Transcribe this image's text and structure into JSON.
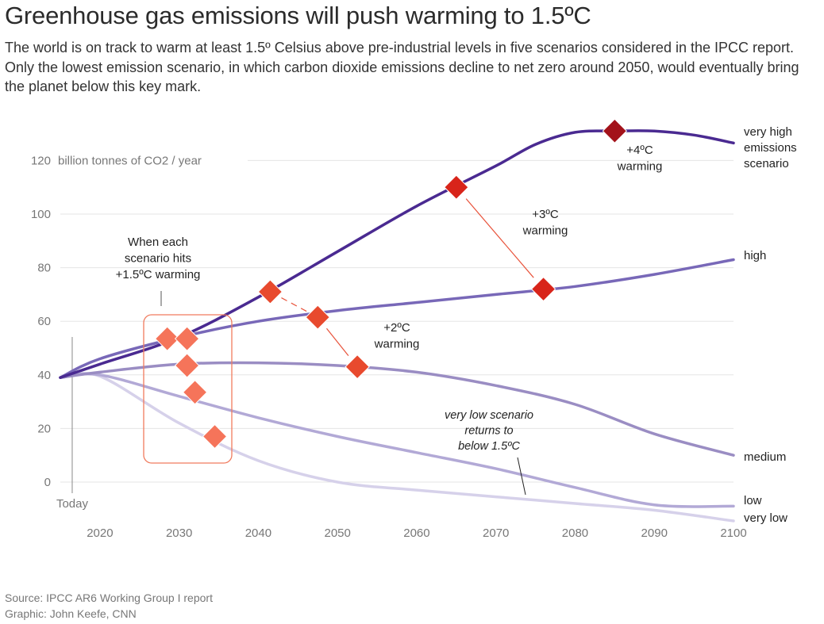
{
  "title": "Greenhouse gas emissions will push warming to 1.5ºC",
  "subtitle": "The world is on track to warm at least 1.5º Celsius above pre-industrial levels in five scenarios considered in the IPCC report. Only the lowest emission scenario, in which carbon dioxide emissions decline to net zero around 2050, would eventually bring the planet below this key mark.",
  "footer": {
    "source": "Source: IPCC AR6 Working Group I report",
    "credit": "Graphic: John Keefe, CNN"
  },
  "colors": {
    "very_high": "#4a2a91",
    "high": "#7868b8",
    "medium": "#9a8dc3",
    "low": "#b2a9d6",
    "very_low": "#d6d1ea",
    "marker_15": "#f5745a",
    "marker_2": "#e84a2e",
    "marker_3": "#d8241a",
    "marker_4": "#a3121a",
    "connector": "#e8523a",
    "box": "#f07b5e",
    "grid": "#e5e5e5",
    "tick": "#777777"
  },
  "chart_data": {
    "type": "line",
    "xlim": [
      2015,
      2100
    ],
    "ylim": [
      -15,
      130
    ],
    "x_ticks": [
      2020,
      2030,
      2040,
      2050,
      2060,
      2070,
      2080,
      2090,
      2100
    ],
    "y_ticks": [
      0,
      20,
      40,
      60,
      80,
      100,
      120
    ],
    "ylabel": "billion tonnes of CO2 / year",
    "today": {
      "x": 2016.5,
      "label": "Today"
    },
    "series": [
      {
        "key": "very_high",
        "name": "very high emissions scenario",
        "label_lines": [
          "very high",
          "emissions",
          "scenario"
        ],
        "points": [
          [
            2015,
            39
          ],
          [
            2020,
            44
          ],
          [
            2030,
            54
          ],
          [
            2040,
            69
          ],
          [
            2050,
            86
          ],
          [
            2060,
            103
          ],
          [
            2070,
            118
          ],
          [
            2075,
            126
          ],
          [
            2080,
            130.5
          ],
          [
            2085,
            131
          ],
          [
            2090,
            131
          ],
          [
            2095,
            129.5
          ],
          [
            2100,
            126.5
          ]
        ]
      },
      {
        "key": "high",
        "name": "high",
        "label_lines": [
          "high"
        ],
        "points": [
          [
            2015,
            39
          ],
          [
            2020,
            46
          ],
          [
            2030,
            54
          ],
          [
            2040,
            60
          ],
          [
            2050,
            64
          ],
          [
            2060,
            67
          ],
          [
            2070,
            70
          ],
          [
            2080,
            73
          ],
          [
            2090,
            77.5
          ],
          [
            2100,
            83
          ]
        ]
      },
      {
        "key": "medium",
        "name": "medium",
        "label_lines": [
          "medium"
        ],
        "points": [
          [
            2015,
            39
          ],
          [
            2020,
            41
          ],
          [
            2030,
            44
          ],
          [
            2040,
            44.5
          ],
          [
            2050,
            43.5
          ],
          [
            2060,
            41
          ],
          [
            2070,
            36
          ],
          [
            2080,
            29
          ],
          [
            2090,
            18
          ],
          [
            2100,
            10
          ]
        ]
      },
      {
        "key": "low",
        "name": "low",
        "label_lines": [
          "low"
        ],
        "points": [
          [
            2015,
            39
          ],
          [
            2020,
            40
          ],
          [
            2030,
            32
          ],
          [
            2040,
            24
          ],
          [
            2050,
            17
          ],
          [
            2060,
            11
          ],
          [
            2070,
            5
          ],
          [
            2080,
            -2
          ],
          [
            2090,
            -8.5
          ],
          [
            2100,
            -9
          ]
        ]
      },
      {
        "key": "very_low",
        "name": "very low",
        "label_lines": [
          "very low"
        ],
        "points": [
          [
            2015,
            39
          ],
          [
            2020,
            39.5
          ],
          [
            2030,
            22
          ],
          [
            2040,
            8
          ],
          [
            2050,
            0
          ],
          [
            2060,
            -3
          ],
          [
            2070,
            -5.5
          ],
          [
            2080,
            -8
          ],
          [
            2090,
            -10.5
          ],
          [
            2100,
            -14.5
          ]
        ]
      }
    ],
    "markers": [
      {
        "label": "+1.5ºC",
        "series": "very_high",
        "x": 2028.5,
        "y": 53.5,
        "color_key": "marker_15"
      },
      {
        "label": "+1.5ºC",
        "series": "high",
        "x": 2031,
        "y": 53.5,
        "color_key": "marker_15"
      },
      {
        "label": "+1.5ºC",
        "series": "medium",
        "x": 2031,
        "y": 43.5,
        "color_key": "marker_15"
      },
      {
        "label": "+1.5ºC",
        "series": "low",
        "x": 2032,
        "y": 33.5,
        "color_key": "marker_15"
      },
      {
        "label": "+1.5ºC",
        "series": "very_low",
        "x": 2034.5,
        "y": 17,
        "color_key": "marker_15"
      },
      {
        "label": "+2ºC",
        "series": "very_high",
        "x": 2041.5,
        "y": 71,
        "color_key": "marker_2"
      },
      {
        "label": "+2ºC",
        "series": "high",
        "x": 2047.5,
        "y": 61.5,
        "color_key": "marker_2"
      },
      {
        "label": "+2ºC",
        "series": "medium",
        "x": 2052.5,
        "y": 43,
        "color_key": "marker_2"
      },
      {
        "label": "+3ºC",
        "series": "very_high",
        "x": 2065,
        "y": 110,
        "color_key": "marker_3"
      },
      {
        "label": "+3ºC",
        "series": "high",
        "x": 2076,
        "y": 72,
        "color_key": "marker_3"
      },
      {
        "label": "+4ºC",
        "series": "very_high",
        "x": 2085,
        "y": 131,
        "color_key": "marker_4"
      }
    ],
    "annotations": {
      "box_label": [
        "When each",
        "scenario hits",
        "+1.5ºC warming"
      ],
      "warming_2": [
        "+2ºC",
        "warming"
      ],
      "warming_3": [
        "+3ºC",
        "warming"
      ],
      "warming_4": [
        "+4ºC",
        "warming"
      ],
      "very_low_note": [
        "very low scenario",
        "returns to",
        "below 1.5ºC"
      ]
    }
  }
}
